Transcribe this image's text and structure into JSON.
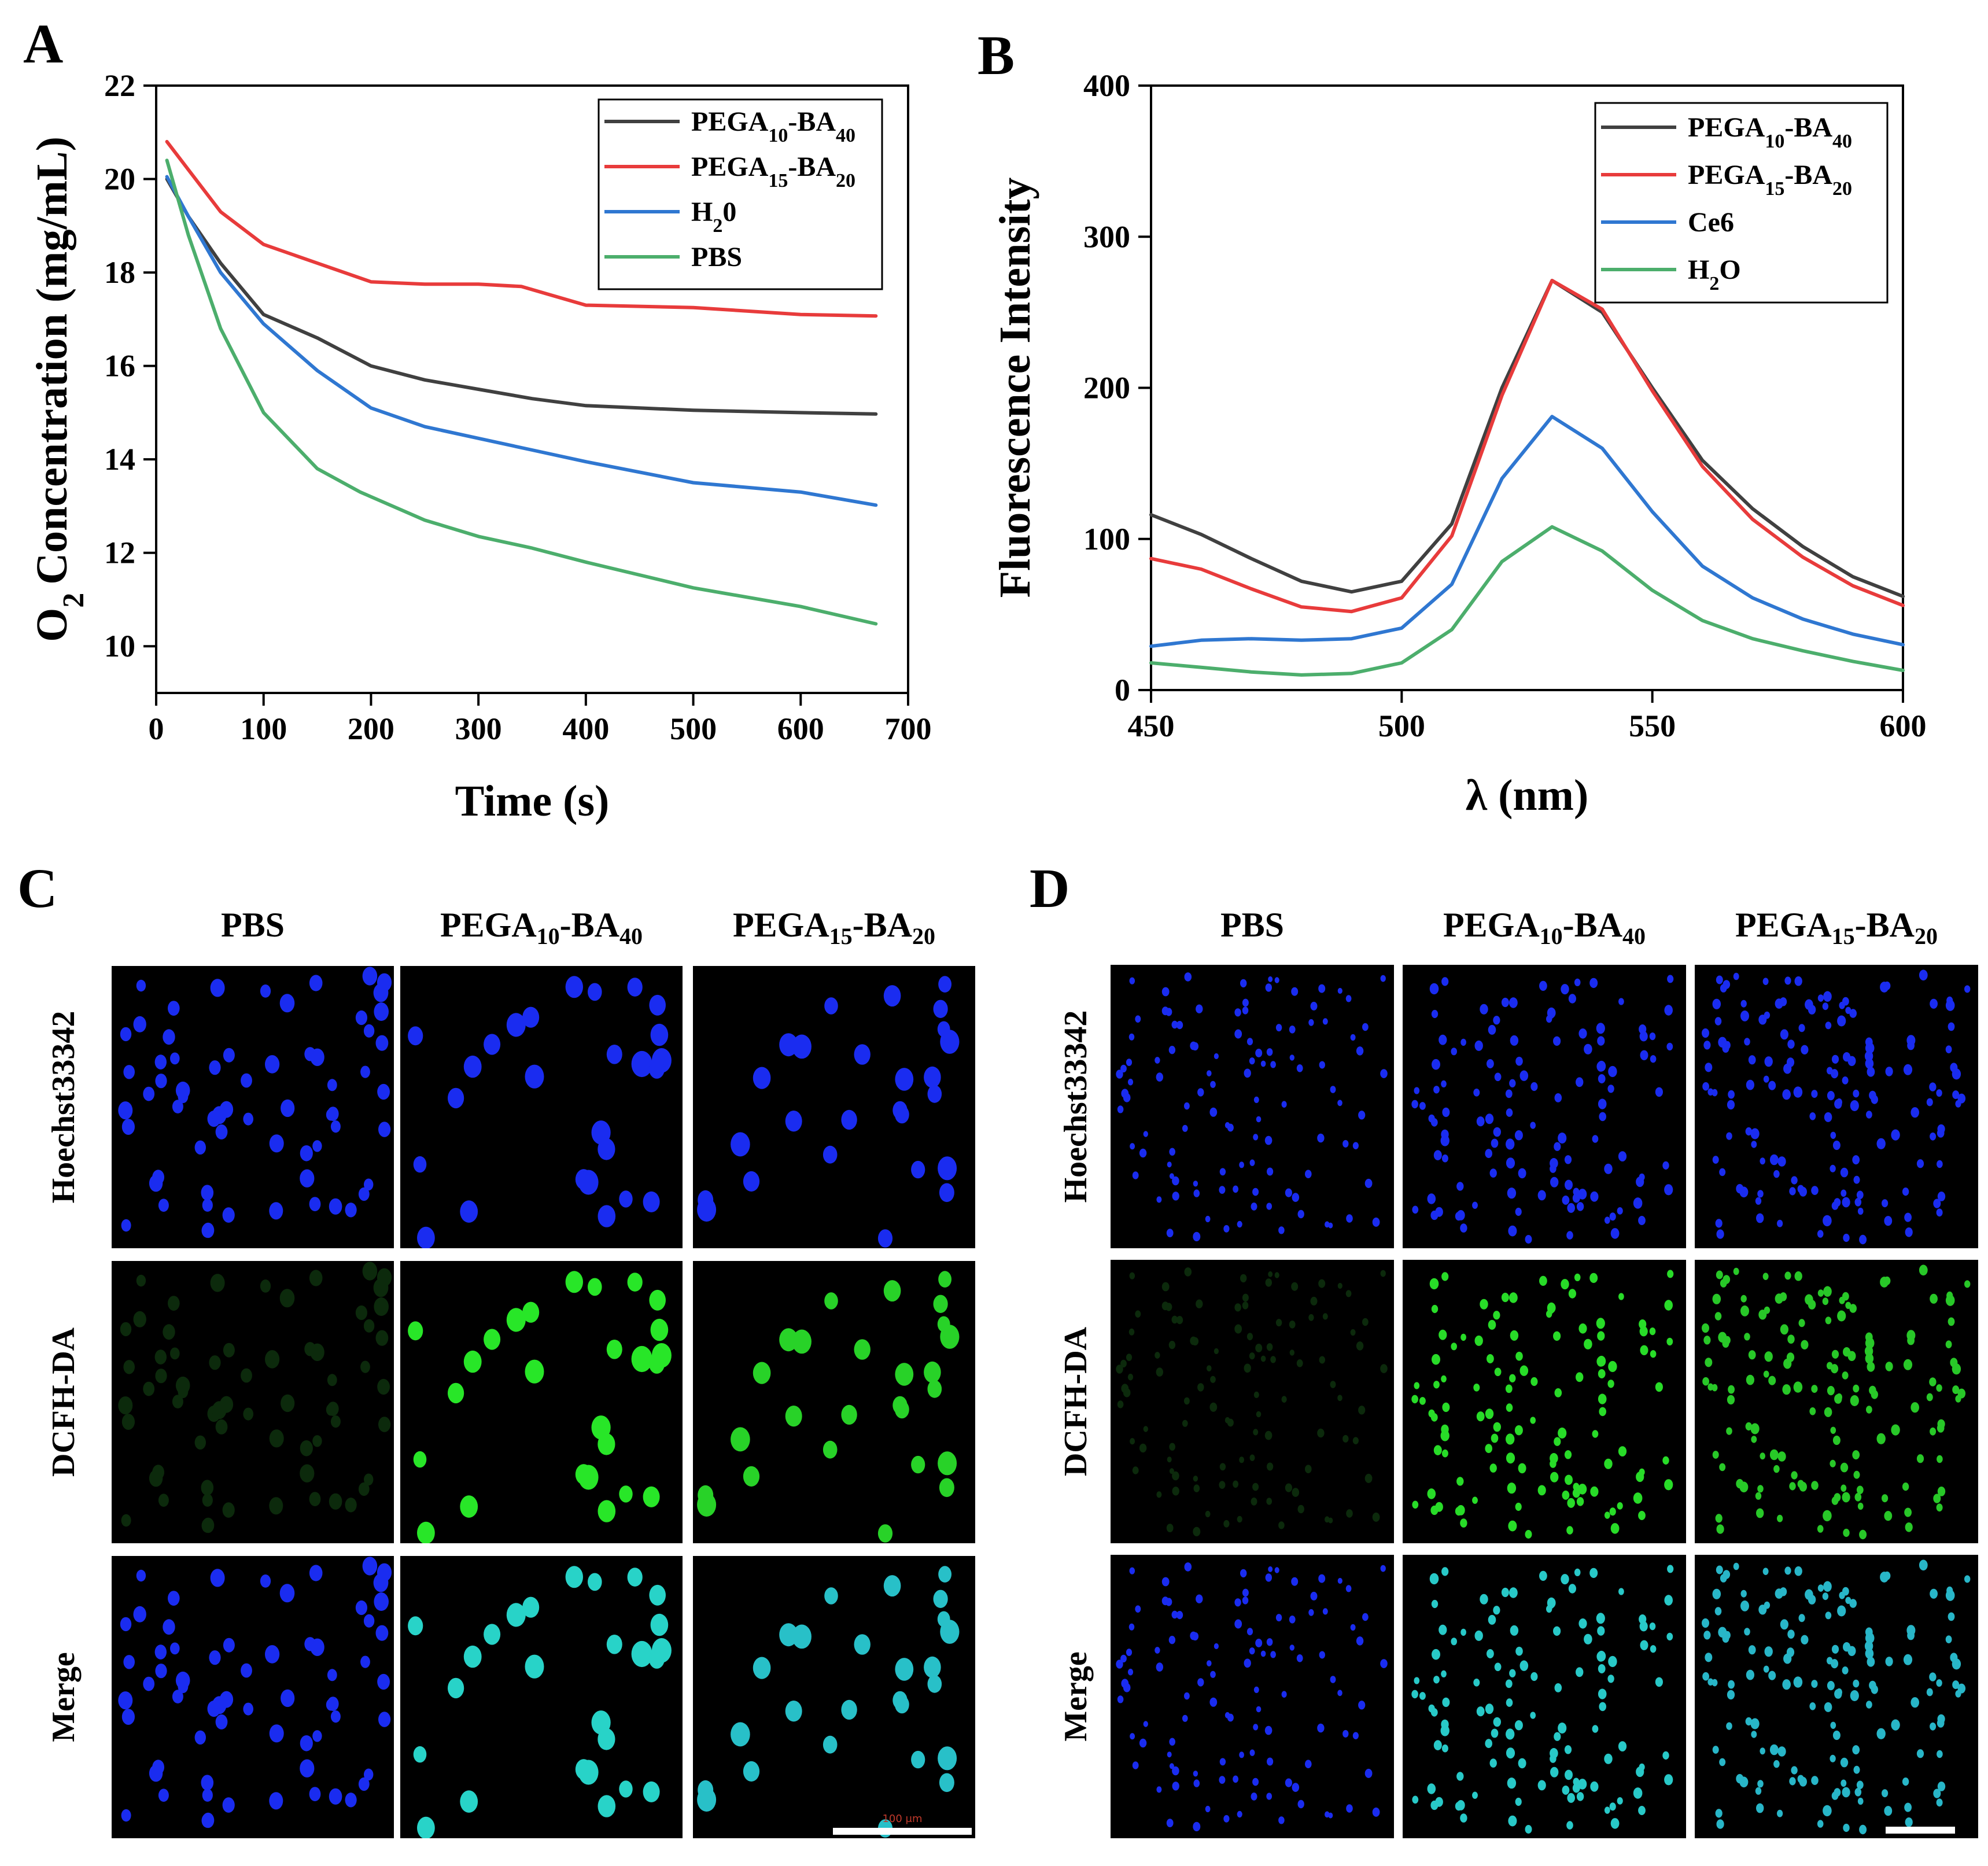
{
  "panels": {
    "A": {
      "letter": "A"
    },
    "B": {
      "letter": "B"
    },
    "C": {
      "letter": "C"
    },
    "D": {
      "letter": "D"
    }
  },
  "chart_data": [
    {
      "id": "A",
      "type": "line",
      "title": "",
      "xlabel": "Time (s)",
      "ylabel": "O2 Concentration (mg/mL)",
      "ylabel_main": "Concentration (mg/mL)",
      "ylabel_prefix": "O",
      "ylabel_sub": "2",
      "xlim": [
        0,
        700
      ],
      "ylim": [
        9,
        22
      ],
      "xticks": [
        0,
        100,
        200,
        300,
        400,
        500,
        600,
        700
      ],
      "yticks": [
        10,
        12,
        14,
        16,
        18,
        20,
        22
      ],
      "legend_position": "top-right",
      "series": [
        {
          "name": "PEGA10-BA40",
          "base": "PEGA",
          "sub1": "10",
          "mid": "-BA",
          "sub2": "40",
          "color": "#404040",
          "x": [
            10,
            30,
            60,
            100,
            150,
            200,
            250,
            300,
            350,
            400,
            500,
            600,
            670
          ],
          "y": [
            20.0,
            19.2,
            18.2,
            17.1,
            16.6,
            16.0,
            15.7,
            15.5,
            15.3,
            15.15,
            15.05,
            15.0,
            14.97
          ]
        },
        {
          "name": "PEGA15-BA20",
          "base": "PEGA",
          "sub1": "15",
          "mid": "-BA",
          "sub2": "20",
          "color": "#e83b3b",
          "x": [
            10,
            30,
            60,
            100,
            150,
            200,
            250,
            300,
            340,
            400,
            500,
            600,
            670
          ],
          "y": [
            20.8,
            20.2,
            19.3,
            18.6,
            18.2,
            17.8,
            17.75,
            17.75,
            17.7,
            17.3,
            17.25,
            17.1,
            17.07
          ]
        },
        {
          "name": "H20",
          "base": "H",
          "sub1": "2",
          "mid": "0",
          "sub2": "",
          "color": "#2f77d1",
          "x": [
            10,
            30,
            60,
            100,
            150,
            200,
            250,
            300,
            350,
            400,
            500,
            600,
            670
          ],
          "y": [
            20.05,
            19.2,
            18.0,
            16.9,
            15.9,
            15.1,
            14.7,
            14.45,
            14.2,
            13.95,
            13.5,
            13.3,
            13.02
          ]
        },
        {
          "name": "PBS",
          "base": "PBS",
          "sub1": "",
          "mid": "",
          "sub2": "",
          "color": "#4cae6c",
          "x": [
            10,
            30,
            60,
            100,
            150,
            190,
            250,
            300,
            350,
            400,
            500,
            600,
            670
          ],
          "y": [
            20.4,
            18.8,
            16.8,
            15.0,
            13.8,
            13.3,
            12.7,
            12.35,
            12.1,
            11.8,
            11.25,
            10.85,
            10.48
          ]
        }
      ]
    },
    {
      "id": "B",
      "type": "line",
      "title": "",
      "xlabel": "λ (nm)",
      "ylabel": "Fluorescence Intensity",
      "xlim": [
        450,
        600
      ],
      "ylim": [
        0,
        400
      ],
      "xticks": [
        450,
        500,
        550,
        600
      ],
      "yticks": [
        0,
        100,
        200,
        300,
        400
      ],
      "legend_position": "top-right",
      "series": [
        {
          "name": "PEGA10-BA40",
          "base": "PEGA",
          "sub1": "10",
          "mid": "-BA",
          "sub2": "40",
          "color": "#404040",
          "x": [
            450,
            460,
            470,
            480,
            490,
            500,
            510,
            520,
            530,
            540,
            550,
            560,
            570,
            580,
            590,
            600
          ],
          "y": [
            116,
            103,
            87,
            72,
            65,
            72,
            110,
            200,
            271,
            250,
            200,
            152,
            120,
            95,
            75,
            62
          ]
        },
        {
          "name": "PEGA15-BA20",
          "base": "PEGA",
          "sub1": "15",
          "mid": "-BA",
          "sub2": "20",
          "color": "#e83b3b",
          "x": [
            450,
            460,
            470,
            480,
            490,
            500,
            510,
            520,
            530,
            540,
            550,
            560,
            570,
            580,
            590,
            600
          ],
          "y": [
            87,
            80,
            67,
            55,
            52,
            61,
            102,
            195,
            271,
            252,
            198,
            148,
            113,
            88,
            69,
            56
          ]
        },
        {
          "name": "Ce6",
          "base": "Ce6",
          "sub1": "",
          "mid": "",
          "sub2": "",
          "color": "#2f77d1",
          "x": [
            450,
            460,
            470,
            480,
            490,
            500,
            510,
            520,
            530,
            540,
            550,
            560,
            570,
            580,
            590,
            600
          ],
          "y": [
            29,
            33,
            34,
            33,
            34,
            41,
            70,
            140,
            181,
            160,
            118,
            82,
            61,
            47,
            37,
            30
          ]
        },
        {
          "name": "H2O",
          "base": "H",
          "sub1": "2",
          "mid": "O",
          "sub2": "",
          "color": "#4cae6c",
          "x": [
            450,
            460,
            470,
            480,
            490,
            500,
            510,
            520,
            530,
            540,
            550,
            560,
            570,
            580,
            590,
            600
          ],
          "y": [
            18,
            15,
            12,
            10,
            11,
            18,
            40,
            85,
            108,
            92,
            66,
            46,
            34,
            26,
            19,
            13
          ]
        }
      ]
    }
  ],
  "microscopy": [
    {
      "id": "C",
      "columns": [
        {
          "base": "PBS",
          "sub1": "",
          "mid": "",
          "sub2": ""
        },
        {
          "base": "PEGA",
          "sub1": "10",
          "mid": "-BA",
          "sub2": "40"
        },
        {
          "base": "PEGA",
          "sub1": "15",
          "mid": "-BA",
          "sub2": "20"
        }
      ],
      "rows": [
        "Hoechst33342",
        "DCFH-DA",
        "Merge"
      ],
      "scale_bar_text": "100 μm"
    },
    {
      "id": "D",
      "columns": [
        {
          "base": "PBS",
          "sub1": "",
          "mid": "",
          "sub2": ""
        },
        {
          "base": "PEGA",
          "sub1": "10",
          "mid": "-BA",
          "sub2": "40"
        },
        {
          "base": "PEGA",
          "sub1": "15",
          "mid": "-BA",
          "sub2": "20"
        }
      ],
      "rows": [
        "Hoechst33342",
        "DCFH-DA",
        "Merge"
      ]
    }
  ]
}
